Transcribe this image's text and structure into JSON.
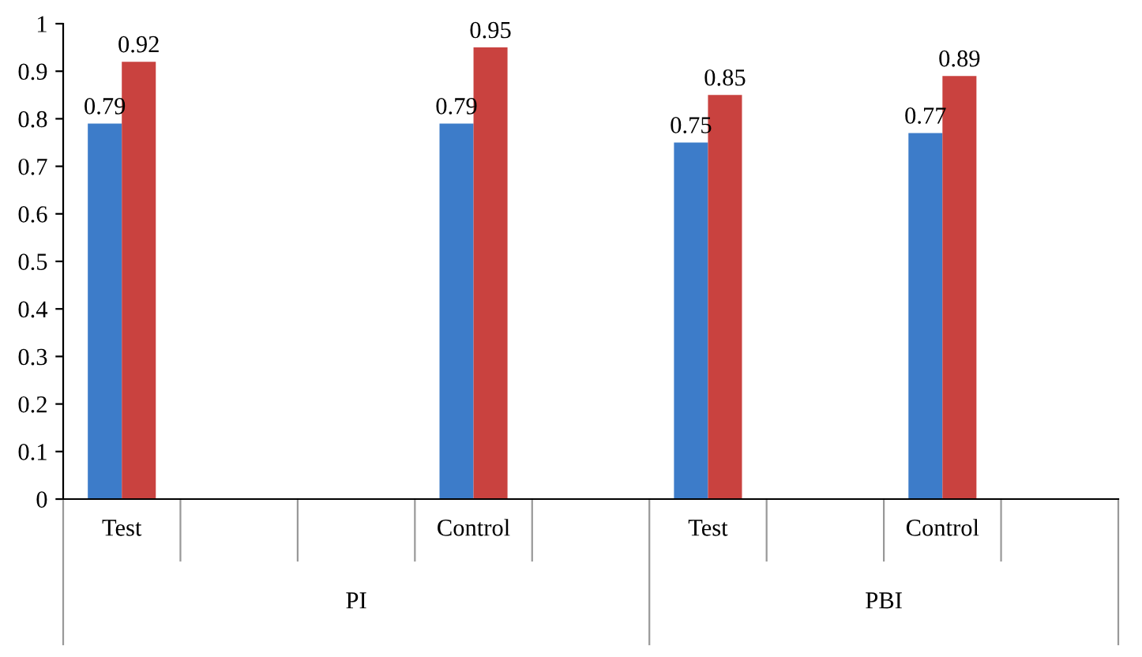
{
  "chart_data": {
    "type": "bar",
    "categories": [
      "Test",
      null,
      null,
      "Control",
      null,
      "Test",
      null,
      "Control",
      null
    ],
    "series": [
      {
        "color": "#3d7cc9",
        "values": [
          0.79,
          null,
          null,
          0.79,
          null,
          0.75,
          null,
          0.77,
          null
        ]
      },
      {
        "color": "#c9423f",
        "values": [
          0.92,
          null,
          null,
          0.95,
          null,
          0.85,
          null,
          0.89,
          null
        ]
      }
    ],
    "ylim": [
      0,
      1
    ],
    "yticks": [
      0,
      0.1,
      0.2,
      0.3,
      0.4,
      0.5,
      0.6,
      0.7,
      0.8,
      0.9,
      1
    ],
    "data_labels": true,
    "grid": false,
    "legend": false,
    "annotations": [
      "PI",
      "PBI"
    ]
  }
}
